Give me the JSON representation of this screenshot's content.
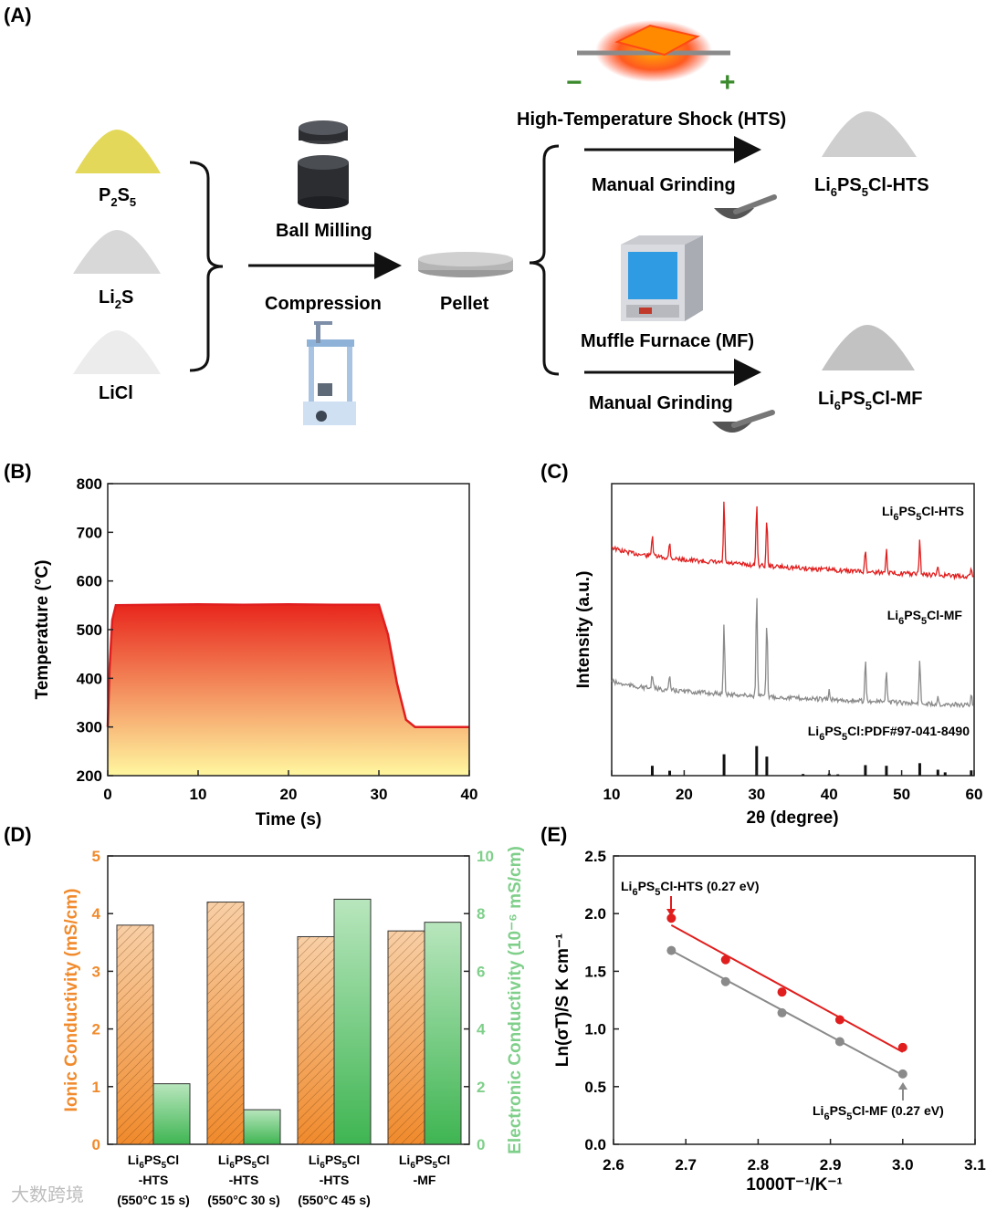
{
  "panels": {
    "a": "(A)",
    "b": "(B)",
    "c": "(C)",
    "d": "(D)",
    "e": "(E)"
  },
  "schematic": {
    "precursors": [
      {
        "main": "P",
        "sub1": "2",
        "mid": "S",
        "sub2": "5",
        "color": "#e3d85a"
      },
      {
        "main": "Li",
        "sub1": "2",
        "mid": "S",
        "sub2": "",
        "color": "#d8d8d8"
      },
      {
        "main": "LiCl",
        "sub1": "",
        "mid": "",
        "sub2": "",
        "color": "#ececec"
      }
    ],
    "ball_milling": "Ball Milling",
    "compression": "Compression",
    "pellet": "Pellet",
    "hts": "High-Temperature Shock (HTS)",
    "minus": "−",
    "plus": "+",
    "manual_grinding_1": "Manual Grinding",
    "manual_grinding_2": "Manual Grinding",
    "muffle": "Muffle Furnace (MF)",
    "product_hts": {
      "a": "Li",
      "s1": "6",
      "b": "PS",
      "s2": "5",
      "c": "Cl-HTS"
    },
    "product_mf": {
      "a": "Li",
      "s1": "6",
      "b": "PS",
      "s2": "5",
      "c": "Cl-MF"
    }
  },
  "chart_data": [
    {
      "id": "B",
      "type": "area",
      "title": "",
      "xlabel": "Time (s)",
      "ylabel": "Temperature (°C)",
      "xlim": [
        0,
        40
      ],
      "ylim": [
        200,
        800
      ],
      "xticks": [
        0,
        10,
        20,
        30,
        40
      ],
      "yticks": [
        200,
        300,
        400,
        500,
        600,
        700,
        800
      ],
      "x": [
        0,
        0.2,
        0.5,
        0.9,
        5,
        10,
        15,
        20,
        25,
        30,
        31,
        32,
        33,
        34,
        40
      ],
      "y": [
        300,
        420,
        520,
        550,
        551,
        552,
        551,
        552,
        551,
        551,
        490,
        390,
        315,
        300,
        300
      ],
      "line_color": "#e01e1e",
      "fill_top": "#e8261c",
      "fill_bottom": "#fff7a0"
    },
    {
      "id": "C",
      "type": "line",
      "xlabel": "2θ (degree)",
      "ylabel": "Intensity (a.u.)",
      "xlim": [
        10,
        60
      ],
      "xticks": [
        10,
        20,
        30,
        40,
        50,
        60
      ],
      "series": [
        {
          "name": "Li6PS5Cl-HTS",
          "label": {
            "a": "Li",
            "s1": "6",
            "b": "PS",
            "s2": "5",
            "c": "Cl-HTS"
          },
          "color": "#e01e1e",
          "baseline_start": 0.66,
          "baseline_end": 0.33,
          "peaks": [
            [
              15.6,
              0.35
            ],
            [
              18.0,
              0.25
            ],
            [
              25.5,
              0.95
            ],
            [
              30.0,
              1.0
            ],
            [
              31.4,
              0.75
            ],
            [
              45.0,
              0.35
            ],
            [
              47.9,
              0.4
            ],
            [
              52.5,
              0.55
            ],
            [
              55.0,
              0.12
            ],
            [
              59.6,
              0.15
            ]
          ]
        },
        {
          "name": "Li6PS5Cl-MF",
          "label": {
            "a": "Li",
            "s1": "6",
            "b": "PS",
            "s2": "5",
            "c": "Cl-MF"
          },
          "color": "#8a8a8a",
          "baseline_start": 0.5,
          "baseline_end": 0.2,
          "peaks": [
            [
              15.6,
              0.2
            ],
            [
              18.0,
              0.18
            ],
            [
              25.5,
              1.0
            ],
            [
              30.0,
              1.45
            ],
            [
              31.4,
              1.05
            ],
            [
              40.0,
              0.12
            ],
            [
              45.0,
              0.6
            ],
            [
              47.9,
              0.45
            ],
            [
              52.5,
              0.62
            ],
            [
              55.0,
              0.12
            ],
            [
              59.6,
              0.15
            ]
          ]
        }
      ],
      "reference": {
        "label": {
          "a": "Li",
          "s1": "6",
          "b": "PS",
          "s2": "5",
          "c": "Cl:PDF#97-041-8490"
        },
        "sticks": [
          [
            15.6,
            0.3
          ],
          [
            18.0,
            0.15
          ],
          [
            25.5,
            0.65
          ],
          [
            30.0,
            0.9
          ],
          [
            31.4,
            0.58
          ],
          [
            36.4,
            0.05
          ],
          [
            40.0,
            0.06
          ],
          [
            41.2,
            0.04
          ],
          [
            45.0,
            0.32
          ],
          [
            47.9,
            0.3
          ],
          [
            52.5,
            0.38
          ],
          [
            55.0,
            0.18
          ],
          [
            56.0,
            0.1
          ],
          [
            59.6,
            0.16
          ]
        ]
      }
    },
    {
      "id": "D",
      "type": "bar",
      "ylabel_left": "Ionic Conductivity (mS/cm)",
      "ylabel_right": "Electronic Conductivity (10⁻⁶ mS/cm)",
      "ylim_left": [
        0,
        5
      ],
      "ylim_right": [
        0,
        10
      ],
      "yticks_left": [
        0,
        1,
        2,
        3,
        4,
        5
      ],
      "yticks_right": [
        0,
        2,
        4,
        6,
        8,
        10
      ],
      "left_color": "#f08a2c",
      "right_color": "#7fcf8a",
      "categories": [
        {
          "l1a": "Li",
          "s1": "6",
          "l1b": "PS",
          "s2": "5",
          "l1c": "Cl",
          "l2": "-HTS",
          "l3": "(550°C 15 s)"
        },
        {
          "l1a": "Li",
          "s1": "6",
          "l1b": "PS",
          "s2": "5",
          "l1c": "Cl",
          "l2": "-HTS",
          "l3": "(550°C 30 s)"
        },
        {
          "l1a": "Li",
          "s1": "6",
          "l1b": "PS",
          "s2": "5",
          "l1c": "Cl",
          "l2": "-HTS",
          "l3": "(550°C 45 s)"
        },
        {
          "l1a": "Li",
          "s1": "6",
          "l1b": "PS",
          "s2": "5",
          "l1c": "Cl",
          "l2": "-MF",
          "l3": ""
        }
      ],
      "series": [
        {
          "name": "Ionic Conductivity",
          "axis": "left",
          "values": [
            3.8,
            4.2,
            3.6,
            3.7
          ]
        },
        {
          "name": "Electronic Conductivity",
          "axis": "right",
          "values": [
            2.1,
            1.2,
            8.5,
            7.7
          ]
        }
      ]
    },
    {
      "id": "E",
      "type": "scatter",
      "xlabel": "1000T⁻¹/K⁻¹",
      "ylabel": "Ln(σT)/S K cm⁻¹",
      "xlim": [
        2.6,
        3.1
      ],
      "ylim": [
        0.0,
        2.5
      ],
      "xticks": [
        2.6,
        2.7,
        2.8,
        2.9,
        3.0,
        3.1
      ],
      "yticks": [
        0.0,
        0.5,
        1.0,
        1.5,
        2.0,
        2.5
      ],
      "series": [
        {
          "name": "Li6PS5Cl-HTS (0.27 eV)",
          "label": {
            "a": "Li",
            "s1": "6",
            "b": "PS",
            "s2": "5",
            "c": "Cl-HTS (0.27 eV)"
          },
          "color": "#e01e1e",
          "x": [
            2.68,
            2.755,
            2.833,
            2.913,
            3.0
          ],
          "y": [
            1.96,
            1.6,
            1.32,
            1.08,
            0.84
          ],
          "fit": [
            [
              2.68,
              1.9
            ],
            [
              3.0,
              0.8
            ]
          ]
        },
        {
          "name": "Li6PS5Cl-MF (0.27 eV)",
          "label": {
            "a": "Li",
            "s1": "6",
            "b": "PS",
            "s2": "5",
            "c": "Cl-MF (0.27 eV)"
          },
          "color": "#8a8a8a",
          "x": [
            2.68,
            2.755,
            2.833,
            2.913,
            3.0
          ],
          "y": [
            1.68,
            1.41,
            1.14,
            0.89,
            0.61
          ],
          "fit": [
            [
              2.68,
              1.68
            ],
            [
              3.0,
              0.6
            ]
          ]
        }
      ]
    }
  ],
  "watermark": "大数跨境"
}
